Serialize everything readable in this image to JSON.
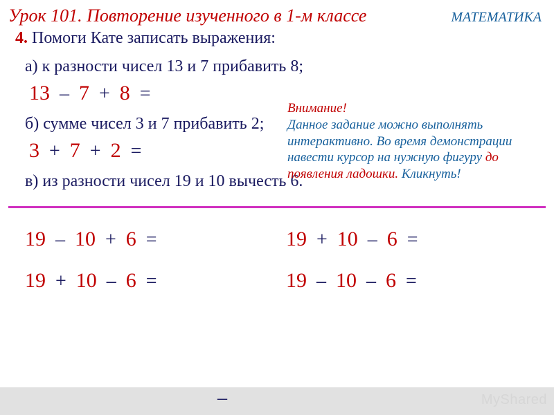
{
  "colors": {
    "title_red": "#c00000",
    "subject_blue": "#17609c",
    "body_text": "#1a1a60",
    "number_red": "#c00000",
    "divider": "#d030c0",
    "footer_band": "#e1e1e1",
    "watermark": "#d6d6d6",
    "background": "#ffffff"
  },
  "typography": {
    "title_fontsize": 26,
    "subject_fontsize": 20,
    "body_fontsize": 24,
    "number_fontsize": 30,
    "operator_fontsize": 28,
    "attention_fontsize": 19,
    "body_font": "Times New Roman",
    "title_italic": true
  },
  "header": {
    "lesson_title": "Урок 101. Повторение изученного в 1-м классе",
    "subject": "МАТЕМАТИКА"
  },
  "task": {
    "number": "4.",
    "intro": " Помоги Кате записать выражения:"
  },
  "sub_a": {
    "text": "а) к разности чисел 13 и 7 прибавить 8;",
    "tokens": [
      "13",
      "–",
      "7",
      "+",
      "8",
      "="
    ]
  },
  "sub_b": {
    "text": "б) сумме чисел 3 и 7 прибавить 2;",
    "tokens": [
      "3",
      "+",
      "7",
      "+",
      "2",
      "="
    ]
  },
  "sub_c": {
    "text": "в) из разности чисел 19 и 10 вычесть 6."
  },
  "attention": {
    "line1": "Внимание!",
    "line2": "Данное задание можно выполнять интерактивно.  Во время демонстрации навести курсор на нужную фигуру ",
    "line3": "до появления ладошки.",
    "line4": " Кликнуть!"
  },
  "options": {
    "opt1": [
      "19",
      "–",
      "10",
      "+",
      "6",
      "="
    ],
    "opt2": [
      "19",
      "+",
      "10",
      "–",
      "6",
      "="
    ],
    "opt3": [
      "19",
      "+",
      "10",
      "–",
      "6",
      "="
    ],
    "opt4": [
      "19",
      "–",
      "10",
      "–",
      "6",
      "="
    ]
  },
  "trailing_dash": "–",
  "watermark": "MyShared"
}
